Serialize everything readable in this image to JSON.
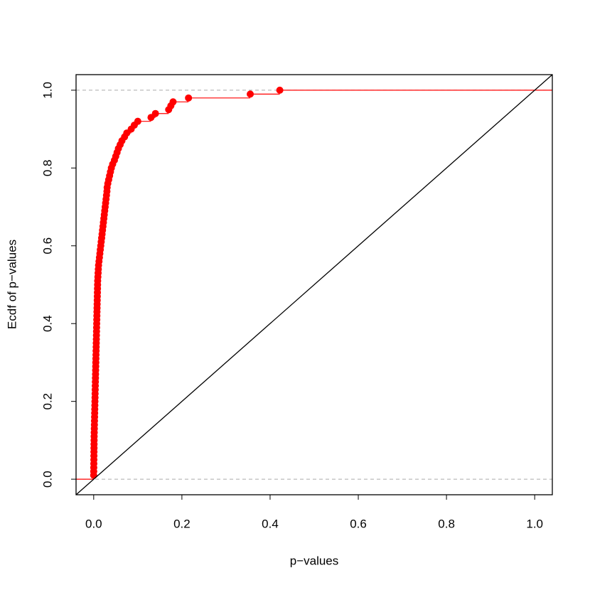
{
  "chart_data": {
    "type": "ecdf",
    "x_label": "p−values",
    "y_label": "Ecdf of p−values",
    "color": "#ff0000",
    "x": [
      0.0,
      0.0001,
      0.0002,
      0.0003,
      0.0004,
      0.0005,
      0.0006,
      0.0007,
      0.0008,
      0.0009,
      0.001,
      0.0012,
      0.0014,
      0.0016,
      0.0018,
      0.002,
      0.0022,
      0.0024,
      0.0026,
      0.0028,
      0.003,
      0.0032,
      0.0034,
      0.0036,
      0.0038,
      0.004,
      0.0042,
      0.0044,
      0.0046,
      0.0048,
      0.005,
      0.0052,
      0.0054,
      0.0056,
      0.0058,
      0.006,
      0.0062,
      0.0064,
      0.0066,
      0.0068,
      0.007,
      0.0072,
      0.0074,
      0.0076,
      0.0078,
      0.008,
      0.0082,
      0.0084,
      0.0086,
      0.0088,
      0.009,
      0.0095,
      0.01,
      0.0105,
      0.011,
      0.012,
      0.013,
      0.014,
      0.015,
      0.016,
      0.017,
      0.018,
      0.019,
      0.02,
      0.021,
      0.022,
      0.023,
      0.024,
      0.025,
      0.026,
      0.027,
      0.028,
      0.029,
      0.03,
      0.0305,
      0.032,
      0.034,
      0.036,
      0.038,
      0.04,
      0.043,
      0.047,
      0.05,
      0.053,
      0.056,
      0.06,
      0.064,
      0.07,
      0.075,
      0.085,
      0.092,
      0.1,
      0.13,
      0.14,
      0.17,
      0.175,
      0.18,
      0.215,
      0.355,
      0.422
    ],
    "values": [
      0.01,
      0.02,
      0.03,
      0.04,
      0.05,
      0.06,
      0.07,
      0.08,
      0.09,
      0.1,
      0.11,
      0.12,
      0.13,
      0.14,
      0.15,
      0.16,
      0.17,
      0.18,
      0.19,
      0.2,
      0.21,
      0.22,
      0.23,
      0.24,
      0.25,
      0.26,
      0.27,
      0.28,
      0.29,
      0.3,
      0.31,
      0.32,
      0.33,
      0.34,
      0.35,
      0.36,
      0.37,
      0.38,
      0.39,
      0.4,
      0.41,
      0.42,
      0.43,
      0.44,
      0.45,
      0.46,
      0.47,
      0.48,
      0.49,
      0.5,
      0.51,
      0.52,
      0.53,
      0.54,
      0.55,
      0.56,
      0.57,
      0.58,
      0.59,
      0.6,
      0.61,
      0.62,
      0.63,
      0.64,
      0.65,
      0.66,
      0.67,
      0.68,
      0.69,
      0.7,
      0.71,
      0.72,
      0.73,
      0.74,
      0.75,
      0.76,
      0.77,
      0.78,
      0.79,
      0.8,
      0.81,
      0.82,
      0.83,
      0.84,
      0.85,
      0.86,
      0.87,
      0.88,
      0.89,
      0.9,
      0.91,
      0.92,
      0.93,
      0.94,
      0.95,
      0.96,
      0.97,
      0.98,
      0.99,
      1.0
    ],
    "xlim": [
      -0.04,
      1.04
    ],
    "ylim": [
      -0.04,
      1.04
    ],
    "xticks": [
      {
        "value": 0,
        "label": "0.0"
      },
      {
        "value": 0.2,
        "label": "0.2"
      },
      {
        "value": 0.4,
        "label": "0.4"
      },
      {
        "value": 0.6,
        "label": "0.6"
      },
      {
        "value": 0.8,
        "label": "0.8"
      },
      {
        "value": 1,
        "label": "1.0"
      }
    ],
    "yticks": [
      {
        "value": 0,
        "label": "0.0"
      },
      {
        "value": 0.2,
        "label": "0.2"
      },
      {
        "value": 0.4,
        "label": "0.4"
      },
      {
        "value": 0.6,
        "label": "0.6"
      },
      {
        "value": 0.8,
        "label": "0.8"
      },
      {
        "value": 1,
        "label": "1.0"
      }
    ],
    "hlines": [
      0,
      1
    ],
    "diagonal": true
  }
}
